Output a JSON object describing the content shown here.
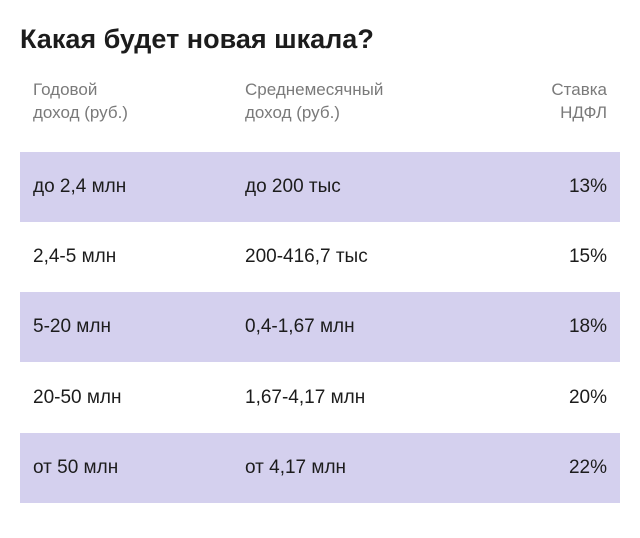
{
  "title": "Какая будет новая шкала?",
  "header": {
    "columns": [
      [
        "Годовой",
        "доход (руб.)"
      ],
      [
        "Среднемесячный",
        "доход (руб.)"
      ],
      [
        "Ставка",
        "НДФЛ"
      ]
    ]
  },
  "table": {
    "rows": [
      [
        "до 2,4 млн",
        "до 200 тыс",
        "13%"
      ],
      [
        "2,4-5 млн",
        "200-416,7 тыс",
        "15%"
      ],
      [
        "5-20 млн",
        "0,4-1,67 млн",
        "18%"
      ],
      [
        "20-50 млн",
        "1,67-4,17 млн",
        "20%"
      ],
      [
        "от 50 млн",
        "от 4,17 млн",
        "22%"
      ]
    ]
  }
}
